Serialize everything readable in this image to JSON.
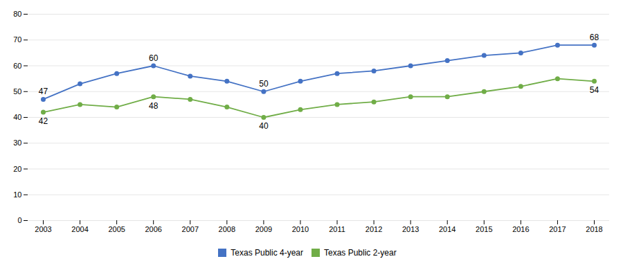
{
  "chart_data": {
    "type": "line",
    "x": [
      2003,
      2004,
      2005,
      2006,
      2007,
      2008,
      2009,
      2010,
      2011,
      2012,
      2013,
      2014,
      2015,
      2016,
      2017,
      2018
    ],
    "series": [
      {
        "name": "Texas Public 4-year",
        "color": "#4472C4",
        "values": [
          47,
          53,
          57,
          60,
          56,
          54,
          50,
          54,
          57,
          58,
          60,
          62,
          64,
          65,
          68,
          68
        ]
      },
      {
        "name": "Texas Public 2-year",
        "color": "#70AD47",
        "values": [
          42,
          45,
          44,
          48,
          47,
          44,
          40,
          43,
          45,
          46,
          48,
          48,
          50,
          52,
          55,
          54
        ]
      }
    ],
    "annotations": [
      {
        "series": "Texas Public 4-year",
        "x": 2003,
        "y": 47,
        "text": "47"
      },
      {
        "series": "Texas Public 4-year",
        "x": 2006,
        "y": 60,
        "text": "60"
      },
      {
        "series": "Texas Public 4-year",
        "x": 2009,
        "y": 50,
        "text": "50"
      },
      {
        "series": "Texas Public 4-year",
        "x": 2018,
        "y": 68,
        "text": "68"
      },
      {
        "series": "Texas Public 2-year",
        "x": 2003,
        "y": 42,
        "text": "42"
      },
      {
        "series": "Texas Public 2-year",
        "x": 2006,
        "y": 48,
        "text": "48"
      },
      {
        "series": "Texas Public 2-year",
        "x": 2009,
        "y": 40,
        "text": "40"
      },
      {
        "series": "Texas Public 2-year",
        "x": 2018,
        "y": 54,
        "text": "54"
      }
    ],
    "xlim": [
      2003,
      2018
    ],
    "xticks": [
      2003,
      2004,
      2005,
      2006,
      2007,
      2008,
      2009,
      2010,
      2011,
      2012,
      2013,
      2014,
      2015,
      2016,
      2017,
      2018
    ],
    "ylim": [
      0,
      80
    ],
    "yticks": [
      0,
      10,
      20,
      30,
      40,
      50,
      60,
      70,
      80
    ],
    "grid": true,
    "marker": "circle",
    "legend": "bottom"
  }
}
